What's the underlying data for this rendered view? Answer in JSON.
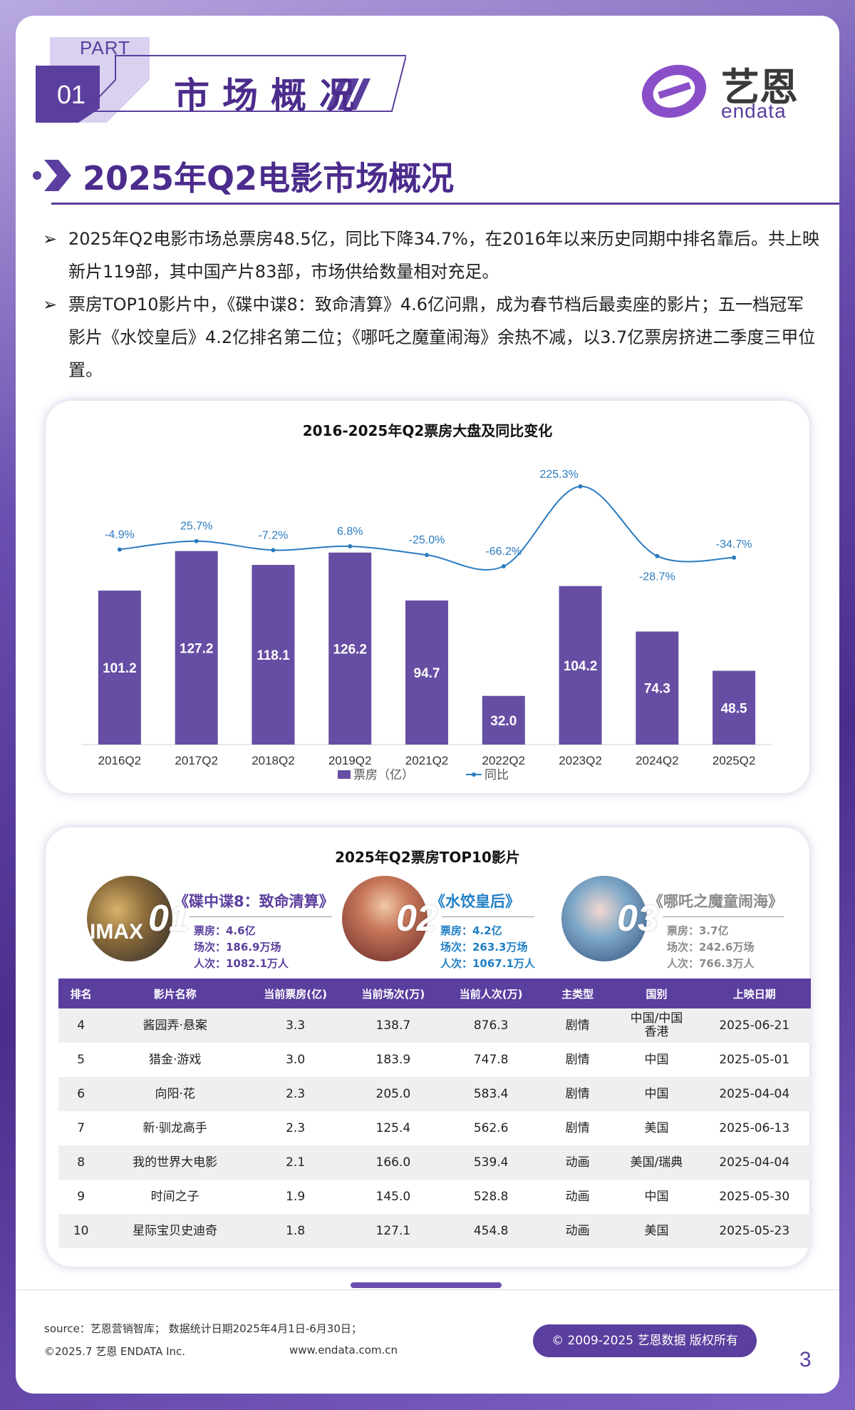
{
  "header": {
    "part_label": "PART",
    "part_number": "01",
    "section_title": "市场概况",
    "logo_cn": "艺恩",
    "logo_en": "endata",
    "main_title": "2025年Q2电影市场概况"
  },
  "bullets": [
    "2025年Q2电影市场总票房48.5亿，同比下降34.7%，在2016年以来历史同期中排名靠后。共上映新片119部，其中国产片83部，市场供给数量相对充足。",
    "票房TOP10影片中，《碟中谍8：致命清算》4.6亿问鼎，成为春节档后最卖座的影片；五一档冠军影片《水饺皇后》4.2亿排名第二位；《哪吒之魔童闹海》余热不减，以3.7亿票房挤进二季度三甲位置。"
  ],
  "chart_data": {
    "type": "bar",
    "title": "2016-2025年Q2票房大盘及同比变化",
    "categories": [
      "2016Q2",
      "2017Q2",
      "2018Q2",
      "2019Q2",
      "2021Q2",
      "2022Q2",
      "2023Q2",
      "2024Q2",
      "2025Q2"
    ],
    "series": [
      {
        "name": "票房（亿）",
        "type": "bar",
        "color": "#654ea3",
        "values": [
          101.2,
          127.2,
          118.1,
          126.2,
          94.7,
          32.0,
          104.2,
          74.3,
          48.5
        ]
      },
      {
        "name": "同比",
        "type": "line",
        "color": "#2b7bc0",
        "values": [
          -4.9,
          25.7,
          -7.2,
          6.8,
          -25.0,
          -66.2,
          225.3,
          -28.7,
          -34.7
        ]
      }
    ],
    "bar_labels": [
      "101.2",
      "127.2",
      "118.1",
      "126.2",
      "94.7",
      "32.0",
      "104.2",
      "74.3",
      "48.5"
    ],
    "line_labels": [
      "-4.9%",
      "25.7%",
      "-7.2%",
      "6.8%",
      "-25.0%",
      "-66.2%",
      "225.3%",
      "-28.7%",
      "-34.7%"
    ],
    "legend_position": "bottom",
    "grid": false
  },
  "top10": {
    "title": "2025年Q2票房TOP10影片",
    "top3": [
      {
        "rank": "01",
        "name": "《碟中谍8：致命清算》",
        "color": "#5b3f9e",
        "box_office": "票房：4.6亿",
        "screenings": "场次：186.9万场",
        "admissions": "人次：1082.1万人",
        "stat_color": "#5b3f9e",
        "poster_label": "IMAX"
      },
      {
        "rank": "02",
        "name": "《水饺皇后》",
        "color": "#1f7fc6",
        "box_office": "票房：4.2亿",
        "screenings": "场次：263.3万场",
        "admissions": "人次：1067.1万人",
        "stat_color": "#1f7fc6"
      },
      {
        "rank": "03",
        "name": "《哪吒之魔童闹海》",
        "color": "#8a8a8a",
        "box_office": "票房：3.7亿",
        "screenings": "场次：242.6万场",
        "admissions": "人次：766.3万人",
        "stat_color": "#8a8a8a"
      }
    ],
    "columns": [
      "排名",
      "影片名称",
      "当前票房(亿)",
      "当前场次(万)",
      "当前人次(万)",
      "主类型",
      "国别",
      "上映日期"
    ],
    "rows": [
      [
        "4",
        "酱园弄·悬案",
        "3.3",
        "138.7",
        "876.3",
        "剧情",
        "中国/中国香港",
        "2025-06-21"
      ],
      [
        "5",
        "猎金·游戏",
        "3.0",
        "183.9",
        "747.8",
        "剧情",
        "中国",
        "2025-05-01"
      ],
      [
        "6",
        "向阳·花",
        "2.3",
        "205.0",
        "583.4",
        "剧情",
        "中国",
        "2025-04-04"
      ],
      [
        "7",
        "新·驯龙高手",
        "2.3",
        "125.4",
        "562.6",
        "剧情",
        "美国",
        "2025-06-13"
      ],
      [
        "8",
        "我的世界大电影",
        "2.1",
        "166.0",
        "539.4",
        "动画",
        "美国/瑞典",
        "2025-04-04"
      ],
      [
        "9",
        "时间之子",
        "1.9",
        "145.0",
        "528.8",
        "动画",
        "中国",
        "2025-05-30"
      ],
      [
        "10",
        "星际宝贝史迪奇",
        "1.8",
        "127.1",
        "454.8",
        "动画",
        "美国",
        "2025-05-23"
      ]
    ]
  },
  "footer": {
    "source": "source：艺恩营销智库；  数据统计日期2025年4月1日-6月30日；",
    "copyright_left": "©2025.7 艺恩 ENDATA Inc.",
    "website": "www.endata.com.cn",
    "copyright_badge": "© 2009-2025 艺恩数据 版权所有",
    "page_number": "3"
  }
}
